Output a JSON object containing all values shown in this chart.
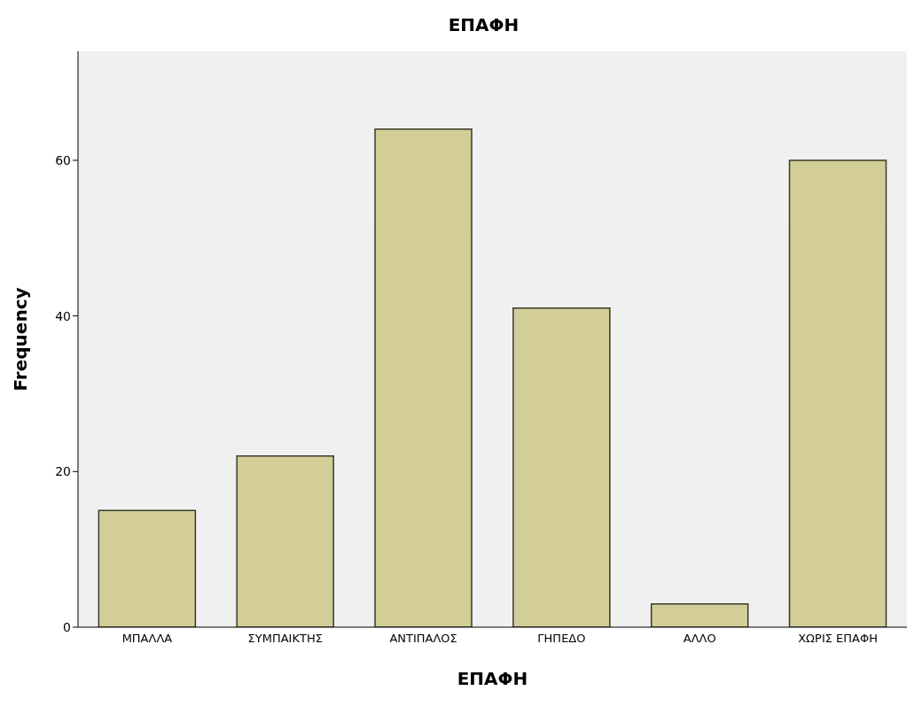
{
  "chart_data": {
    "type": "bar",
    "title": "ΕΠΑΦΗ",
    "xlabel": "ΕΠΑΦΗ",
    "ylabel": "Frequency",
    "categories": [
      "ΜΠΑΛΛΑ",
      "ΣΥΜΠΑΙΚΤΗΣ",
      "ΑΝΤΙΠΑΛΟΣ",
      "ΓΗΠΕΔΟ",
      "ΑΛΛΟ",
      "ΧΩΡΙΣ ΕΠΑΦΗ"
    ],
    "values": [
      15,
      22,
      64,
      41,
      3,
      60
    ],
    "color": "#d3ce97",
    "ylim": [
      0,
      74
    ],
    "yticks": [
      0,
      20,
      40,
      60
    ],
    "grid": false
  }
}
